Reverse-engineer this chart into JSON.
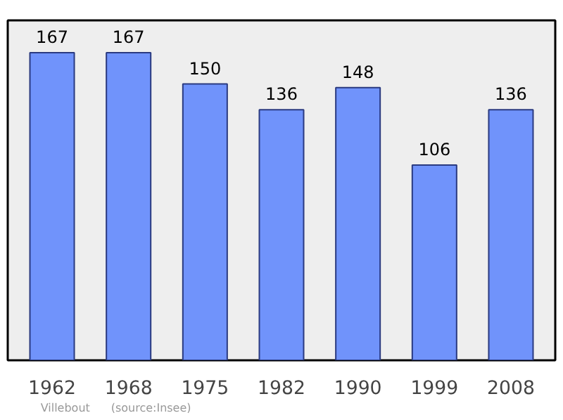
{
  "chart_data": {
    "type": "bar",
    "categories": [
      "1962",
      "1968",
      "1975",
      "1982",
      "1990",
      "1999",
      "2008"
    ],
    "values": [
      167,
      167,
      150,
      136,
      148,
      106,
      136
    ],
    "color": "#7093fb",
    "data_labels": true,
    "grid": false,
    "annotations": [
      "Villebout",
      "(source:Insee)"
    ]
  }
}
